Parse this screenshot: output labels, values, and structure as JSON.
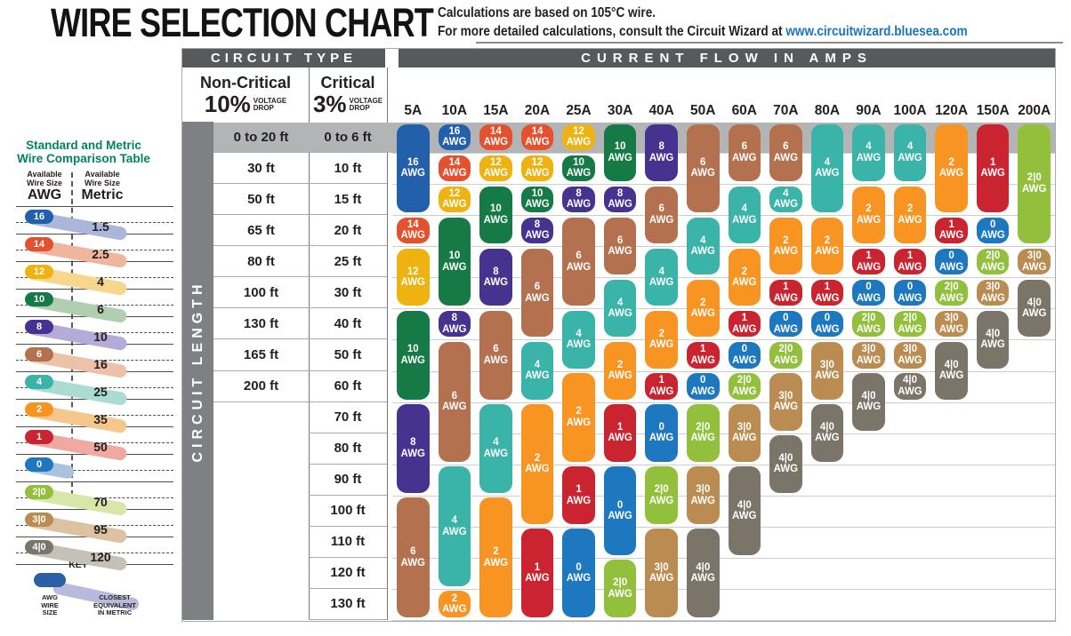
{
  "header": {
    "title": "WIRE SELECTION CHART",
    "note_line1": "Calculations are based on 105°C wire.",
    "note_line2": "For more detailed calculations, consult the Circuit Wizard at",
    "note_link": "www.circuitwizard.bluesea.com"
  },
  "sidebar": {
    "title": "Standard and Metric\nWire Comparison Table",
    "col_left_small": "Available\nWire Size",
    "col_left_big": "AWG",
    "col_right_small": "Available\nWire Size",
    "col_right_big": "Metric",
    "rows": [
      {
        "awg": "16",
        "metric": "1.5"
      },
      {
        "awg": "14",
        "metric": "2.5"
      },
      {
        "awg": "12",
        "metric": "4"
      },
      {
        "awg": "10",
        "metric": "6"
      },
      {
        "awg": "8",
        "metric": "10"
      },
      {
        "awg": "6",
        "metric": "16"
      },
      {
        "awg": "4",
        "metric": "25"
      },
      {
        "awg": "2",
        "metric": "35"
      },
      {
        "awg": "1",
        "metric": "50"
      },
      {
        "awg": "0",
        "metric": "",
        "short_band": true
      },
      {
        "awg": "2|0",
        "metric": "70"
      },
      {
        "awg": "3|0",
        "metric": "95"
      },
      {
        "awg": "4|0",
        "metric": "120"
      }
    ],
    "key": {
      "title": "KEY",
      "awg_label": "AWG\nWIRE\nSIZE",
      "metric_label": "CLOSEST\nEQUIVALENT\nIN METRIC",
      "pill_color": "#2b5fa5",
      "band_color": "#b9b9db"
    }
  },
  "wire_colors": {
    "16": "#2260ab",
    "14": "#e4512e",
    "12": "#eeb211",
    "10": "#157a45",
    "8": "#463390",
    "6": "#b4714f",
    "4": "#3ab3a8",
    "2": "#f79422",
    "1": "#c92430",
    "0": "#1e78c0",
    "2|0": "#92c03d",
    "3|0": "#ba8c52",
    "4|0": "#7b7569"
  },
  "wire_colors_light": {
    "16": "#aab7da",
    "14": "#f1b49d",
    "12": "#f6d78d",
    "10": "#afcfae",
    "8": "#b4abd9",
    "6": "#eec2a9",
    "4": "#aadcd3",
    "2": "#f6c78d",
    "1": "#efa9a1",
    "0": "#a9c3df",
    "2|0": "#d9e6a9",
    "3|0": "#dcc2a1",
    "4|0": "#c6c1b7"
  },
  "table": {
    "circuit_type_header": "CIRCUIT TYPE",
    "current_flow_header": "CURRENT FLOW IN AMPS",
    "noncritical_name": "Non-Critical",
    "noncritical_pct": "10%",
    "critical_name": "Critical",
    "critical_pct": "3%",
    "voltage_drop": "VOLTAGE\nDROP",
    "circuit_length_label": "CIRCUIT LENGTH",
    "awg_suffix": "AWG"
  },
  "chart_data": {
    "type": "table",
    "title": "WIRE SELECTION CHART",
    "columns_header": "CURRENT FLOW IN AMPS",
    "rows_header": "CIRCUIT LENGTH",
    "amps": [
      "5A",
      "10A",
      "15A",
      "20A",
      "25A",
      "30A",
      "40A",
      "50A",
      "60A",
      "70A",
      "80A",
      "90A",
      "100A",
      "120A",
      "150A",
      "200A"
    ],
    "noncritical_10pct_lengths": [
      "0 to 20 ft",
      "30 ft",
      "50 ft",
      "65 ft",
      "80 ft",
      "100 ft",
      "130 ft",
      "165 ft",
      "200 ft",
      "",
      "",
      "",
      "",
      "",
      "",
      ""
    ],
    "critical_3pct_lengths": [
      "0 to 6 ft",
      "10 ft",
      "15 ft",
      "20 ft",
      "25 ft",
      "30 ft",
      "40 ft",
      "50 ft",
      "60 ft",
      "70 ft",
      "80 ft",
      "90 ft",
      "100 ft",
      "110 ft",
      "120 ft",
      "130 ft"
    ],
    "wire_gauge_spans_by_amp": {
      "5A": [
        [
          "16",
          0,
          2
        ],
        [
          "14",
          3,
          3
        ],
        [
          "12",
          4,
          5
        ],
        [
          "10",
          6,
          8
        ],
        [
          "8",
          9,
          11
        ],
        [
          "6",
          12,
          15
        ]
      ],
      "10A": [
        [
          "16",
          0,
          0
        ],
        [
          "14",
          1,
          1
        ],
        [
          "12",
          2,
          2
        ],
        [
          "10",
          3,
          5
        ],
        [
          "8",
          6,
          6
        ],
        [
          "6",
          7,
          10
        ],
        [
          "4",
          11,
          14
        ],
        [
          "2",
          15,
          15
        ]
      ],
      "15A": [
        [
          "14",
          0,
          0
        ],
        [
          "12",
          1,
          1
        ],
        [
          "10",
          2,
          3
        ],
        [
          "8",
          4,
          5
        ],
        [
          "6",
          6,
          8
        ],
        [
          "4",
          9,
          11
        ],
        [
          "2",
          12,
          15
        ]
      ],
      "20A": [
        [
          "14",
          0,
          0
        ],
        [
          "12",
          1,
          1
        ],
        [
          "10",
          2,
          2
        ],
        [
          "8",
          3,
          3
        ],
        [
          "6",
          4,
          6
        ],
        [
          "4",
          7,
          8
        ],
        [
          "2",
          9,
          12
        ],
        [
          "1",
          13,
          15
        ]
      ],
      "25A": [
        [
          "12",
          0,
          0
        ],
        [
          "10",
          1,
          1
        ],
        [
          "8",
          2,
          2
        ],
        [
          "6",
          3,
          5
        ],
        [
          "4",
          6,
          7
        ],
        [
          "2",
          8,
          10
        ],
        [
          "1",
          11,
          12
        ],
        [
          "0",
          13,
          15
        ]
      ],
      "30A": [
        [
          "10",
          0,
          1
        ],
        [
          "8",
          2,
          2
        ],
        [
          "6",
          3,
          4
        ],
        [
          "4",
          5,
          6
        ],
        [
          "2",
          7,
          8
        ],
        [
          "1",
          9,
          10
        ],
        [
          "0",
          11,
          13
        ],
        [
          "2|0",
          14,
          15
        ]
      ],
      "40A": [
        [
          "8",
          0,
          1
        ],
        [
          "6",
          2,
          3
        ],
        [
          "4",
          4,
          5
        ],
        [
          "2",
          6,
          7
        ],
        [
          "1",
          8,
          8
        ],
        [
          "0",
          9,
          10
        ],
        [
          "2|0",
          11,
          12
        ],
        [
          "3|0",
          13,
          15
        ]
      ],
      "50A": [
        [
          "6",
          0,
          2
        ],
        [
          "4",
          3,
          4
        ],
        [
          "2",
          5,
          6
        ],
        [
          "1",
          7,
          7
        ],
        [
          "0",
          8,
          8
        ],
        [
          "2|0",
          9,
          10
        ],
        [
          "3|0",
          11,
          12
        ],
        [
          "4|0",
          13,
          15
        ]
      ],
      "60A": [
        [
          "6",
          0,
          1
        ],
        [
          "4",
          2,
          3
        ],
        [
          "2",
          4,
          5
        ],
        [
          "1",
          6,
          6
        ],
        [
          "0",
          7,
          7
        ],
        [
          "2|0",
          8,
          8
        ],
        [
          "3|0",
          9,
          10
        ],
        [
          "4|0",
          11,
          13
        ]
      ],
      "70A": [
        [
          "6",
          0,
          1
        ],
        [
          "4",
          2,
          2
        ],
        [
          "2",
          3,
          4
        ],
        [
          "1",
          5,
          5
        ],
        [
          "0",
          6,
          6
        ],
        [
          "2|0",
          7,
          7
        ],
        [
          "3|0",
          8,
          9
        ],
        [
          "4|0",
          10,
          11
        ]
      ],
      "80A": [
        [
          "4",
          0,
          2
        ],
        [
          "2",
          3,
          4
        ],
        [
          "1",
          5,
          5
        ],
        [
          "0",
          6,
          6
        ],
        [
          "3|0",
          7,
          8
        ],
        [
          "4|0",
          9,
          10
        ]
      ],
      "90A": [
        [
          "4",
          0,
          1
        ],
        [
          "2",
          2,
          3
        ],
        [
          "1",
          4,
          4
        ],
        [
          "0",
          5,
          5
        ],
        [
          "2|0",
          6,
          6
        ],
        [
          "3|0",
          7,
          7
        ],
        [
          "4|0",
          8,
          9
        ]
      ],
      "100A": [
        [
          "4",
          0,
          1
        ],
        [
          "2",
          2,
          3
        ],
        [
          "1",
          4,
          4
        ],
        [
          "0",
          5,
          5
        ],
        [
          "2|0",
          6,
          6
        ],
        [
          "3|0",
          7,
          7
        ],
        [
          "4|0",
          8,
          8
        ]
      ],
      "120A": [
        [
          "2",
          0,
          2
        ],
        [
          "1",
          3,
          3
        ],
        [
          "0",
          4,
          4
        ],
        [
          "2|0",
          5,
          5
        ],
        [
          "3|0",
          6,
          6
        ],
        [
          "4|0",
          7,
          8
        ]
      ],
      "150A": [
        [
          "1",
          0,
          2
        ],
        [
          "0",
          3,
          3
        ],
        [
          "2|0",
          4,
          4
        ],
        [
          "3|0",
          5,
          5
        ],
        [
          "4|0",
          6,
          7
        ]
      ],
      "200A": [
        [
          "2|0",
          0,
          3
        ],
        [
          "3|0",
          4,
          4
        ],
        [
          "4|0",
          5,
          6
        ]
      ]
    }
  }
}
